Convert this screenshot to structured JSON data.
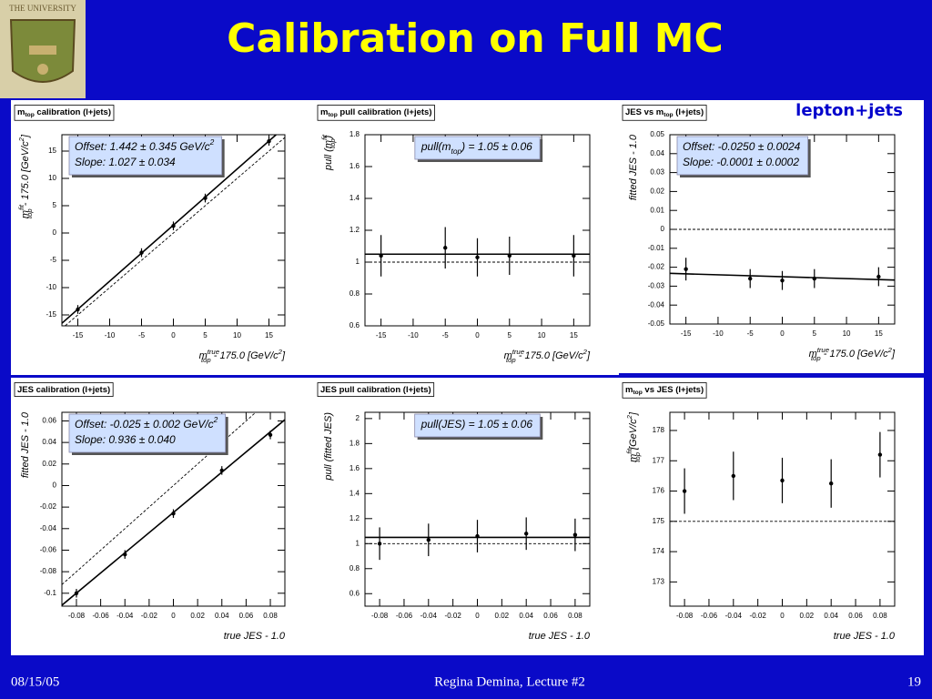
{
  "title": "Calibration on Full MC",
  "logo_text": "THE UNIVERSITY",
  "annotation": "lepton+jets",
  "footer": {
    "date": "08/15/05",
    "author": "Regina Demina, Lecture #2",
    "page": "19"
  },
  "chart_data": [
    {
      "type": "scatter",
      "title": [
        {
          "text": "m"
        },
        {
          "text": "top",
          "pos": "sub"
        },
        {
          "text": " calibration (l+jets)"
        }
      ],
      "xlabel": [
        {
          "text": "m"
        },
        {
          "text": "true",
          "pos": "sup"
        },
        {
          "text": "top",
          "pos": "sub"
        },
        {
          "text": " - 175.0 [GeV/c"
        },
        {
          "text": "2",
          "pos": "sup"
        },
        {
          "text": "]"
        }
      ],
      "ylabel": [
        {
          "text": "m"
        },
        {
          "text": "fit",
          "pos": "sup"
        },
        {
          "text": "top",
          "pos": "sub"
        },
        {
          "text": " - 175.0 [GeV/c"
        },
        {
          "text": "2",
          "pos": "sup"
        },
        {
          "text": "]"
        }
      ],
      "x": [
        -15,
        -5,
        0,
        5,
        15
      ],
      "values": [
        -14,
        -3.6,
        1.3,
        6.4,
        16.8
      ],
      "errors": [
        0.8,
        0.8,
        0.8,
        0.8,
        0.8
      ],
      "xlim": [
        -17.5,
        17.5
      ],
      "xticks": [
        -15,
        -10,
        -5,
        0,
        5,
        10,
        15
      ],
      "ylim": [
        -17,
        18
      ],
      "yticks": [
        -15,
        -10,
        -5,
        0,
        5,
        10,
        15
      ],
      "fit": {
        "offset": 1.442,
        "slope": 1.027
      },
      "reference": {
        "offset": 0,
        "slope": 1
      },
      "box_position": "left",
      "box": [
        [
          {
            "text": "Offset: 1.442 ± 0.345 GeV/c"
          },
          {
            "text": "2",
            "pos": "sup"
          }
        ],
        [
          {
            "text": "  Slope:  1.027 ± 0.034"
          }
        ]
      ]
    },
    {
      "type": "scatter",
      "title": [
        {
          "text": "m"
        },
        {
          "text": "top",
          "pos": "sub"
        },
        {
          "text": " pull calibration (l+jets)"
        }
      ],
      "xlabel": [
        {
          "text": "m"
        },
        {
          "text": "true",
          "pos": "sup"
        },
        {
          "text": "top",
          "pos": "sub"
        },
        {
          "text": " - 175.0 [GeV/c"
        },
        {
          "text": "2",
          "pos": "sup"
        },
        {
          "text": "]"
        }
      ],
      "ylabel": [
        {
          "text": "pull (m"
        },
        {
          "text": "fit",
          "pos": "sup"
        },
        {
          "text": "top",
          "pos": "sub"
        },
        {
          "text": ")"
        }
      ],
      "x": [
        -15,
        -5,
        0,
        5,
        15
      ],
      "values": [
        1.04,
        1.09,
        1.03,
        1.04,
        1.04
      ],
      "errors": [
        0.13,
        0.13,
        0.12,
        0.12,
        0.13
      ],
      "xlim": [
        -17.5,
        17.5
      ],
      "xticks": [
        -15,
        -10,
        -5,
        0,
        5,
        10,
        15
      ],
      "ylim": [
        0.6,
        1.8
      ],
      "yticks": [
        0.6,
        0.8,
        1,
        1.2,
        1.4,
        1.6,
        1.8
      ],
      "fit": {
        "offset": 1.05
      },
      "reference": {
        "offset": 1
      },
      "box_position": "center",
      "box": [
        [
          {
            "text": "pull(m"
          },
          {
            "text": "top",
            "pos": "sub"
          },
          {
            "text": ") = 1.05 ± 0.06"
          }
        ]
      ]
    },
    {
      "type": "scatter",
      "title": [
        {
          "text": "JES vs m"
        },
        {
          "text": "top",
          "pos": "sub"
        },
        {
          "text": " (l+jets)"
        }
      ],
      "xlabel": [
        {
          "text": "m"
        },
        {
          "text": "true",
          "pos": "sup"
        },
        {
          "text": "top",
          "pos": "sub"
        },
        {
          "text": " - 175.0 [GeV/c"
        },
        {
          "text": "2",
          "pos": "sup"
        },
        {
          "text": "]"
        }
      ],
      "ylabel": [
        {
          "text": "fitted JES - 1.0"
        }
      ],
      "x": [
        -15,
        -5,
        0,
        5,
        15
      ],
      "values": [
        -0.021,
        -0.026,
        -0.027,
        -0.026,
        -0.025
      ],
      "errors": [
        0.006,
        0.005,
        0.005,
        0.005,
        0.005
      ],
      "xlim": [
        -17.5,
        17.5
      ],
      "xticks": [
        -15,
        -10,
        -5,
        0,
        5,
        10,
        15
      ],
      "ylim": [
        -0.05,
        0.05
      ],
      "yticks": [
        -0.05,
        -0.04,
        -0.03,
        -0.02,
        -0.01,
        0,
        0.01,
        0.02,
        0.03,
        0.04,
        0.05
      ],
      "fit": {
        "offset": -0.025,
        "slope": -0.0001
      },
      "reference": {
        "offset": 0
      },
      "box_position": "left",
      "box": [
        [
          {
            "text": "Offset: -0.0250 ± 0.0024"
          }
        ],
        [
          {
            "text": "Slope:  -0.0001 ± 0.0002"
          }
        ]
      ]
    },
    {
      "type": "scatter",
      "title": [
        {
          "text": "JES calibration (l+jets)"
        }
      ],
      "xlabel": [
        {
          "text": "true JES - 1.0"
        }
      ],
      "ylabel": [
        {
          "text": "fitted JES - 1.0"
        }
      ],
      "x": [
        -0.08,
        -0.04,
        0,
        0.04,
        0.08
      ],
      "values": [
        -0.1,
        -0.064,
        -0.026,
        0.014,
        0.047
      ],
      "errors": [
        0.004,
        0.004,
        0.004,
        0.004,
        0.004
      ],
      "xlim": [
        -0.092,
        0.092
      ],
      "xticks": [
        -0.08,
        -0.06,
        -0.04,
        -0.02,
        0,
        0.02,
        0.04,
        0.06,
        0.08
      ],
      "ylim": [
        -0.112,
        0.068
      ],
      "yticks": [
        -0.1,
        -0.08,
        -0.06,
        -0.04,
        -0.02,
        0,
        0.02,
        0.04,
        0.06
      ],
      "fit": {
        "offset": -0.025,
        "slope": 0.936
      },
      "reference": {
        "offset": 0,
        "slope": 1
      },
      "box_position": "left",
      "box": [
        [
          {
            "text": "Offset: -0.025 ± 0.002 GeV/c"
          },
          {
            "text": "2",
            "pos": "sup"
          }
        ],
        [
          {
            "text": "  Slope:  0.936 ± 0.040"
          }
        ]
      ]
    },
    {
      "type": "scatter",
      "title": [
        {
          "text": "JES pull calibration (l+jets)"
        }
      ],
      "xlabel": [
        {
          "text": "true JES - 1.0"
        }
      ],
      "ylabel": [
        {
          "text": "pull (fitted JES)"
        }
      ],
      "x": [
        -0.08,
        -0.04,
        0,
        0.04,
        0.08
      ],
      "values": [
        1.0,
        1.03,
        1.06,
        1.08,
        1.07
      ],
      "errors": [
        0.13,
        0.13,
        0.13,
        0.13,
        0.13
      ],
      "xlim": [
        -0.092,
        0.092
      ],
      "xticks": [
        -0.08,
        -0.06,
        -0.04,
        -0.02,
        0,
        0.02,
        0.04,
        0.06,
        0.08
      ],
      "ylim": [
        0.5,
        2.05
      ],
      "yticks": [
        0.6,
        0.8,
        1,
        1.2,
        1.4,
        1.6,
        1.8,
        2
      ],
      "fit": {
        "offset": 1.05
      },
      "reference": {
        "offset": 1
      },
      "box_position": "center",
      "box": [
        [
          {
            "text": "pull(JES) = 1.05 ± 0.06"
          }
        ]
      ]
    },
    {
      "type": "scatter",
      "title": [
        {
          "text": "m"
        },
        {
          "text": "top",
          "pos": "sub"
        },
        {
          "text": " vs JES (l+jets)"
        }
      ],
      "xlabel": [
        {
          "text": "true JES - 1.0"
        }
      ],
      "ylabel": [
        {
          "text": "m"
        },
        {
          "text": "fit",
          "pos": "sup"
        },
        {
          "text": "top",
          "pos": "sub"
        },
        {
          "text": " [GeV/c"
        },
        {
          "text": "2",
          "pos": "sup"
        },
        {
          "text": "]"
        }
      ],
      "x": [
        -0.08,
        -0.04,
        0,
        0.04,
        0.08
      ],
      "values": [
        176.0,
        176.5,
        176.35,
        176.25,
        177.2
      ],
      "errors": [
        0.75,
        0.8,
        0.75,
        0.8,
        0.75
      ],
      "xlim": [
        -0.092,
        0.092
      ],
      "xticks": [
        -0.08,
        -0.06,
        -0.04,
        -0.02,
        0,
        0.02,
        0.04,
        0.06,
        0.08
      ],
      "ylim": [
        172.2,
        178.6
      ],
      "yticks": [
        173,
        174,
        175,
        176,
        177,
        178
      ],
      "reference": {
        "offset": 175
      }
    }
  ]
}
